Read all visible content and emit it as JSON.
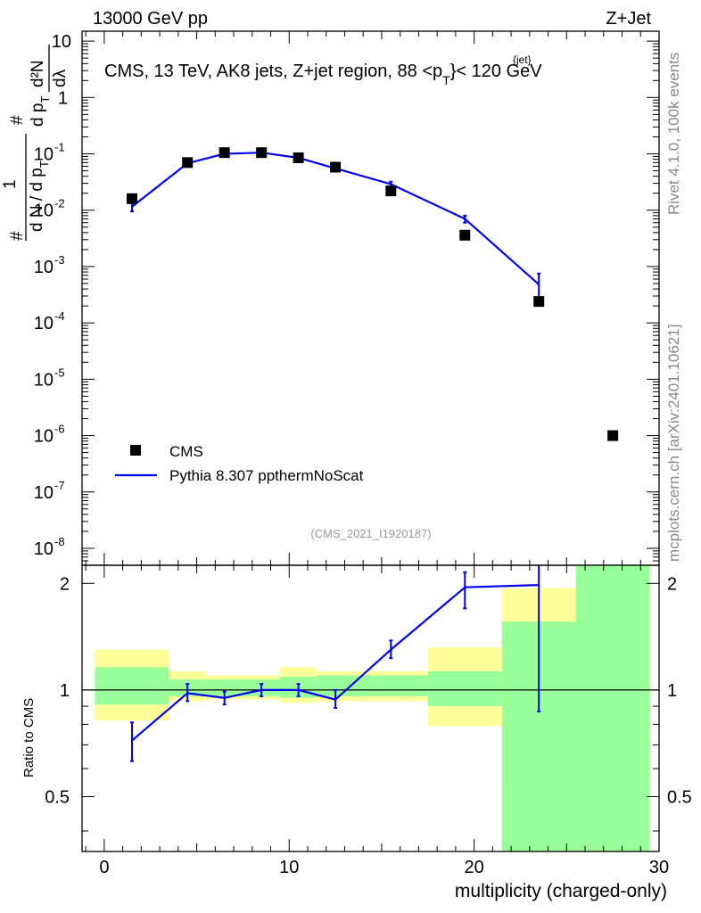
{
  "header": {
    "energy_label": "13000 GeV pp",
    "process_label": "Z+Jet"
  },
  "side_labels": {
    "rivet": "Rivet 4.1.0,  100k events",
    "mcplots": "mcplots.cern.ch [arXiv:2401.10621]"
  },
  "chart_data": [
    {
      "type": "scatter",
      "panel": "main",
      "title_parts": {
        "prefix": "CMS, 13 TeV, AK8 jets, Z+jet region, 88 <p",
        "sub": "T",
        "sup": "{jet}",
        "suffix": "}< 120 GeV"
      },
      "ylabel_parts": {
        "num_top": "#",
        "num_mid": "1",
        "denom": "d N / d p",
        "denom_sub": "T",
        "right_num": "#",
        "right_num_top": "d²N",
        "right_denom": "d p",
        "right_denom_sub": "T",
        "lambda": "dλ"
      },
      "yscale": "log",
      "ylim": [
        5e-09,
        15
      ],
      "xlim": [
        -1.2,
        30
      ],
      "y_ticks": [
        {
          "value": 1e-08,
          "base": "10",
          "exp": "-8"
        },
        {
          "value": 1e-07,
          "base": "10",
          "exp": "-7"
        },
        {
          "value": 1e-06,
          "base": "10",
          "exp": "-6"
        },
        {
          "value": 1e-05,
          "base": "10",
          "exp": "-5"
        },
        {
          "value": 0.0001,
          "base": "10",
          "exp": "-4"
        },
        {
          "value": 0.001,
          "base": "10",
          "exp": "-3"
        },
        {
          "value": 0.01,
          "base": "10",
          "exp": "-2"
        },
        {
          "value": 0.1,
          "base": "10",
          "exp": "-1"
        },
        {
          "value": 1,
          "base": "1",
          "exp": ""
        },
        {
          "value": 10,
          "base": "10",
          "exp": ""
        }
      ],
      "series": [
        {
          "name": "CMS",
          "kind": "markers",
          "color": "#000000",
          "x": [
            1.5,
            4.5,
            6.5,
            8.5,
            10.5,
            12.5,
            15.5,
            19.5,
            23.5,
            27.5
          ],
          "y": [
            0.016,
            0.07,
            0.105,
            0.105,
            0.085,
            0.058,
            0.022,
            0.0036,
            0.00024,
            1e-06
          ]
        },
        {
          "name": "Pythia 8.307 ppthermNoScat",
          "kind": "line",
          "color": "#0000ee",
          "x": [
            1.5,
            4.5,
            6.5,
            8.5,
            10.5,
            12.5,
            15.5,
            19.5,
            23.5
          ],
          "y": [
            0.0115,
            0.068,
            0.1,
            0.105,
            0.085,
            0.055,
            0.029,
            0.007,
            0.00048
          ],
          "yerr_lo": [
            0.0095,
            0.064,
            0.097,
            0.102,
            0.082,
            0.052,
            0.026,
            0.006,
            0.00024
          ],
          "yerr_hi": [
            0.0135,
            0.072,
            0.103,
            0.108,
            0.088,
            0.058,
            0.032,
            0.008,
            0.00075
          ]
        }
      ],
      "legend": [
        "CMS",
        "Pythia 8.307 ppthermNoScat"
      ],
      "legend_position": "lower-left",
      "analysis_id": "(CMS_2021_I1920187)"
    },
    {
      "type": "line",
      "panel": "ratio",
      "ylabel": "Ratio to CMS",
      "ylim": [
        0.35,
        2.25
      ],
      "xlim": [
        -1.2,
        30
      ],
      "xlabel": "multiplicity (charged-only)",
      "x_ticks": [
        0,
        10,
        20,
        30
      ],
      "y_ticks": [
        0.5,
        1,
        2
      ],
      "reference_line": 1,
      "bands": [
        {
          "x0": -0.5,
          "x1": 3.5,
          "yellow": [
            0.82,
            1.3
          ],
          "green": [
            0.91,
            1.16
          ]
        },
        {
          "x0": 3.5,
          "x1": 5.5,
          "yellow": [
            0.93,
            1.13
          ],
          "green": [
            0.96,
            1.07
          ]
        },
        {
          "x0": 5.5,
          "x1": 9.5,
          "yellow": [
            0.94,
            1.1
          ],
          "green": [
            0.96,
            1.07
          ]
        },
        {
          "x0": 9.5,
          "x1": 11.5,
          "yellow": [
            0.92,
            1.16
          ],
          "green": [
            0.95,
            1.09
          ]
        },
        {
          "x0": 11.5,
          "x1": 17.5,
          "yellow": [
            0.93,
            1.13
          ],
          "green": [
            0.96,
            1.1
          ]
        },
        {
          "x0": 17.5,
          "x1": 21.5,
          "yellow": [
            0.79,
            1.32
          ],
          "green": [
            0.9,
            1.13
          ]
        },
        {
          "x0": 21.5,
          "x1": 25.5,
          "yellow": [
            0.55,
            1.94
          ],
          "green": [
            0.35,
            1.56
          ]
        },
        {
          "x0": 25.5,
          "x1": 29.5,
          "yellow": [
            0.35,
            2.25
          ],
          "green": [
            0.35,
            2.25
          ]
        }
      ],
      "series": [
        {
          "name": "Pythia 8.307 ppthermNoScat",
          "color": "#0000ee",
          "x": [
            1.5,
            4.5,
            6.5,
            8.5,
            10.5,
            12.5,
            15.5,
            19.5,
            23.5
          ],
          "y": [
            0.72,
            0.98,
            0.95,
            1.0,
            1.0,
            0.94,
            1.3,
            1.95,
            1.98
          ],
          "yerr_lo": [
            0.63,
            0.93,
            0.91,
            0.96,
            0.96,
            0.89,
            1.23,
            1.7,
            0.87
          ],
          "yerr_hi": [
            0.81,
            1.04,
            0.99,
            1.04,
            1.04,
            1.0,
            1.38,
            2.15,
            2.3
          ]
        }
      ]
    }
  ]
}
